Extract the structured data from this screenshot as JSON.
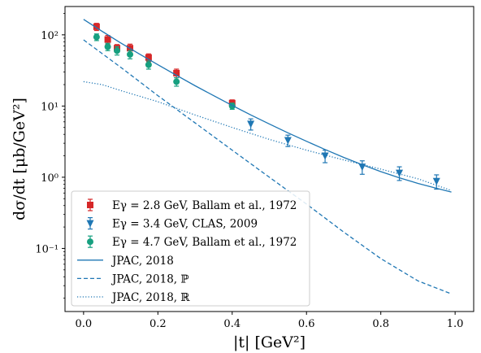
{
  "chart_data": {
    "type": "scatter",
    "title": "",
    "xlabel": "|t| [GeV²]",
    "ylabel": "dσ/dt [μb/GeV²]",
    "xlim": [
      -0.05,
      1.05
    ],
    "ylim": [
      0.013,
      250
    ],
    "yscale": "log",
    "grid": false,
    "legend_position": "lower-left",
    "x_ticks": [
      0.0,
      0.2,
      0.4,
      0.6,
      0.8,
      1.0
    ],
    "x_tick_labels": [
      "0.0",
      "0.2",
      "0.4",
      "0.6",
      "0.8",
      "1.0"
    ],
    "y_ticks": [
      0.1,
      1,
      10,
      100
    ],
    "y_tick_labels": [
      "10⁻¹",
      "10⁰",
      "10¹",
      "10²"
    ],
    "series": [
      {
        "name": "Eγ = 2.8 GeV, Ballam et al., 1972",
        "kind": "errorbar",
        "marker": "square",
        "color": "#d62728",
        "x": [
          0.035,
          0.065,
          0.09,
          0.125,
          0.175,
          0.25,
          0.4
        ],
        "y": [
          130,
          86,
          65,
          65,
          48,
          29,
          11
        ],
        "err": [
          15,
          12,
          8,
          9,
          6,
          4,
          1.2
        ]
      },
      {
        "name": "Eγ = 3.4 GeV, CLAS, 2009",
        "kind": "errorbar",
        "marker": "triangle-down",
        "color": "#1f77b4",
        "x": [
          0.45,
          0.55,
          0.65,
          0.75,
          0.85,
          0.95
        ],
        "y": [
          5.6,
          3.3,
          2.0,
          1.4,
          1.15,
          0.88
        ],
        "err": [
          1.0,
          0.6,
          0.4,
          0.3,
          0.25,
          0.2
        ]
      },
      {
        "name": "Eγ = 4.7 GeV, Ballam et al., 1972",
        "kind": "errorbar",
        "marker": "circle",
        "color": "#17a080",
        "x": [
          0.035,
          0.065,
          0.09,
          0.125,
          0.175,
          0.25,
          0.4
        ],
        "y": [
          93,
          68,
          60,
          53,
          38,
          22,
          10
        ],
        "err": [
          10,
          8,
          8,
          7,
          5,
          3,
          1
        ]
      },
      {
        "name": "JPAC, 2018",
        "kind": "line",
        "dash": "solid",
        "color": "#1f77b4",
        "x": [
          0.0,
          0.05,
          0.1,
          0.15,
          0.2,
          0.25,
          0.3,
          0.35,
          0.4,
          0.45,
          0.5,
          0.55,
          0.6,
          0.65,
          0.7,
          0.75,
          0.8,
          0.85,
          0.9,
          0.95,
          0.99
        ],
        "y": [
          165,
          112,
          77,
          54,
          38,
          27,
          19.3,
          14,
          10.2,
          7.5,
          5.6,
          4.2,
          3.2,
          2.45,
          1.9,
          1.5,
          1.2,
          0.98,
          0.82,
          0.7,
          0.62
        ]
      },
      {
        "name": "JPAC, 2018, ℙ",
        "kind": "line",
        "dash": "dashed",
        "color": "#1f77b4",
        "x": [
          0.0,
          0.1,
          0.2,
          0.3,
          0.4,
          0.5,
          0.6,
          0.7,
          0.8,
          0.9,
          0.99
        ],
        "y": [
          85,
          35,
          14,
          5.8,
          2.4,
          1.0,
          0.42,
          0.17,
          0.072,
          0.035,
          0.023
        ]
      },
      {
        "name": "JPAC, 2018, ℝ",
        "kind": "line",
        "dash": "dotted",
        "color": "#1f77b4",
        "x": [
          0.0,
          0.05,
          0.1,
          0.2,
          0.3,
          0.4,
          0.5,
          0.6,
          0.7,
          0.8,
          0.9,
          0.99
        ],
        "y": [
          22,
          20,
          16.5,
          11.5,
          7.5,
          5.0,
          3.4,
          2.4,
          1.75,
          1.3,
          0.95,
          0.65
        ]
      }
    ]
  }
}
